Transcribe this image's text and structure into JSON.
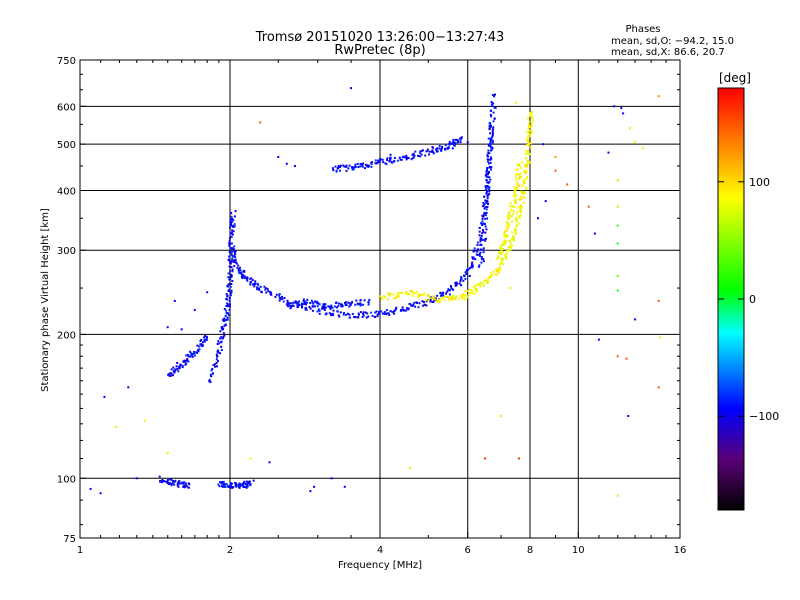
{
  "chart_data": {
    "type": "scatter",
    "title": "Tromsø 20151020 13:26:00−13:27:43",
    "subtitle": "RwPretec (8p)",
    "xlabel": "Frequency [MHz]",
    "ylabel": "Stationary phase Virtual Height [km]",
    "x_scale": "log",
    "y_scale": "log",
    "xlim": [
      1,
      16
    ],
    "ylim": [
      75,
      750
    ],
    "x_ticks": [
      "1",
      "2",
      "4",
      "6",
      "8",
      "10",
      "16"
    ],
    "x_tick_values": [
      1,
      2,
      4,
      6,
      8,
      10,
      16
    ],
    "y_ticks": [
      "750",
      "600",
      "500",
      "400",
      "300",
      "200",
      "100",
      "75"
    ],
    "y_tick_values": [
      750,
      600,
      500,
      400,
      300,
      200,
      100,
      75
    ],
    "x_grid": [
      2,
      4,
      6,
      8,
      10
    ],
    "y_grid": [
      100,
      200,
      300,
      400,
      500,
      600
    ],
    "grid": true,
    "phases_box": {
      "heading": "Phases",
      "line1": "mean, sd,O: −94.2, 15.0",
      "line2": "mean, sd,X: 86.6, 20.7"
    },
    "colorbar": {
      "label": "[deg]",
      "ticks": [
        "100",
        "0",
        "−100"
      ],
      "tick_values": [
        100,
        0,
        -100
      ],
      "range": [
        -180,
        180
      ],
      "colors": [
        "#000000",
        "#5a0078",
        "#0000ff",
        "#00ffff",
        "#00ff00",
        "#ffff00",
        "#ff0000"
      ]
    },
    "series": [
      {
        "color": "#1e3cff",
        "phase": -94.2,
        "traces": [
          [
            [
              1.82,
              160
            ],
            [
              1.9,
              190
            ],
            [
              1.95,
              215
            ],
            [
              1.98,
              240
            ],
            [
              2.0,
              280
            ],
            [
              2.01,
              330
            ],
            [
              2.02,
              360
            ]
          ],
          [
            [
              2.0,
              310
            ],
            [
              2.05,
              280
            ],
            [
              2.15,
              262
            ],
            [
              2.3,
              250
            ],
            [
              2.6,
              236
            ],
            [
              3.0,
              225
            ],
            [
              3.5,
              220
            ],
            [
              4.0,
              222
            ],
            [
              4.5,
              228
            ],
            [
              5.0,
              235
            ],
            [
              5.5,
              248
            ],
            [
              6.0,
              270
            ],
            [
              6.3,
              310
            ],
            [
              6.5,
              380
            ],
            [
              6.6,
              460
            ],
            [
              6.7,
              560
            ]
          ],
          [
            [
              3.2,
              445
            ],
            [
              3.6,
              450
            ],
            [
              4.0,
              460
            ],
            [
              4.5,
              472
            ],
            [
              5.0,
              485
            ],
            [
              5.5,
              500
            ],
            [
              5.8,
              515
            ]
          ],
          [
            [
              6.35,
              280
            ],
            [
              6.45,
              340
            ],
            [
              6.55,
              420
            ],
            [
              6.65,
              520
            ],
            [
              6.75,
              640
            ]
          ],
          [
            [
              1.45,
              100
            ],
            [
              1.55,
              98
            ],
            [
              1.65,
              97
            ]
          ],
          [
            [
              1.9,
              98
            ],
            [
              2.0,
              97
            ],
            [
              2.1,
              97
            ],
            [
              2.2,
              98
            ]
          ],
          [
            [
              1.5,
              165
            ],
            [
              1.6,
              175
            ],
            [
              1.7,
              185
            ],
            [
              1.8,
              200
            ]
          ],
          [
            [
              2.6,
              230
            ],
            [
              2.8,
              235
            ],
            [
              3.1,
              230
            ],
            [
              3.4,
              232
            ],
            [
              3.8,
              235
            ]
          ]
        ]
      },
      {
        "color": "#e6e600",
        "phase": 86.6,
        "traces": [
          [
            [
              4.0,
              240
            ],
            [
              4.6,
              245
            ],
            [
              5.2,
              238
            ],
            [
              5.8,
              240
            ],
            [
              6.3,
              252
            ],
            [
              6.8,
              270
            ],
            [
              7.2,
              300
            ],
            [
              7.5,
              340
            ],
            [
              7.7,
              390
            ],
            [
              7.85,
              450
            ],
            [
              7.95,
              520
            ],
            [
              8.0,
              590
            ]
          ],
          [
            [
              6.9,
              290
            ],
            [
              7.1,
              320
            ],
            [
              7.3,
              360
            ],
            [
              7.5,
              410
            ],
            [
              7.6,
              460
            ]
          ]
        ]
      }
    ],
    "scatter_noise": [
      [
        1.05,
        95,
        -95
      ],
      [
        1.1,
        93,
        -95
      ],
      [
        1.12,
        148,
        -95
      ],
      [
        1.25,
        155,
        -95
      ],
      [
        1.3,
        100,
        -95
      ],
      [
        1.18,
        128,
        95
      ],
      [
        1.35,
        132,
        95
      ],
      [
        1.5,
        113,
        95
      ],
      [
        1.5,
        207,
        -95
      ],
      [
        1.55,
        235,
        -95
      ],
      [
        1.6,
        205,
        -95
      ],
      [
        1.7,
        225,
        -95
      ],
      [
        1.8,
        245,
        -95
      ],
      [
        2.2,
        110,
        95
      ],
      [
        2.4,
        108,
        -95
      ],
      [
        2.3,
        555,
        150
      ],
      [
        2.5,
        470,
        -95
      ],
      [
        2.6,
        455,
        -95
      ],
      [
        2.7,
        450,
        -95
      ],
      [
        2.9,
        94,
        -95
      ],
      [
        2.95,
        96,
        -95
      ],
      [
        3.2,
        100,
        -95
      ],
      [
        3.4,
        96,
        -95
      ],
      [
        3.5,
        655,
        -95
      ],
      [
        4.0,
        465,
        -95
      ],
      [
        4.2,
        475,
        -95
      ],
      [
        4.6,
        105,
        95
      ],
      [
        5.6,
        490,
        -95
      ],
      [
        6.0,
        505,
        -95
      ],
      [
        6.5,
        110,
        160
      ],
      [
        7.3,
        250,
        95
      ],
      [
        7.5,
        610,
        95
      ],
      [
        8.0,
        525,
        95
      ],
      [
        8.5,
        500,
        -95
      ],
      [
        9.0,
        440,
        150
      ],
      [
        9.5,
        412,
        150
      ],
      [
        10.5,
        370,
        150
      ],
      [
        10.8,
        325,
        -95
      ],
      [
        11.0,
        195,
        -95
      ],
      [
        11.5,
        480,
        -95
      ],
      [
        12.0,
        420,
        60
      ],
      [
        12.0,
        370,
        60
      ],
      [
        12.0,
        338,
        20
      ],
      [
        12.0,
        310,
        10
      ],
      [
        12.0,
        265,
        40
      ],
      [
        12.0,
        247,
        10
      ],
      [
        12.0,
        180,
        150
      ],
      [
        12.0,
        92,
        100
      ],
      [
        11.8,
        600,
        -95
      ],
      [
        12.2,
        595,
        -95
      ],
      [
        12.3,
        580,
        -95
      ],
      [
        12.7,
        540,
        95
      ],
      [
        13.0,
        505,
        95
      ],
      [
        13.5,
        490,
        95
      ],
      [
        12.5,
        178,
        150
      ],
      [
        13.0,
        215,
        -95
      ],
      [
        12.6,
        135,
        -95
      ],
      [
        14.5,
        630,
        130
      ],
      [
        14.5,
        235,
        150
      ],
      [
        14.5,
        155,
        150
      ],
      [
        14.6,
        197,
        95
      ],
      [
        9.0,
        470,
        120
      ],
      [
        8.6,
        380,
        -95
      ],
      [
        8.3,
        350,
        -95
      ],
      [
        7.0,
        135,
        95
      ],
      [
        7.6,
        110,
        160
      ]
    ]
  }
}
